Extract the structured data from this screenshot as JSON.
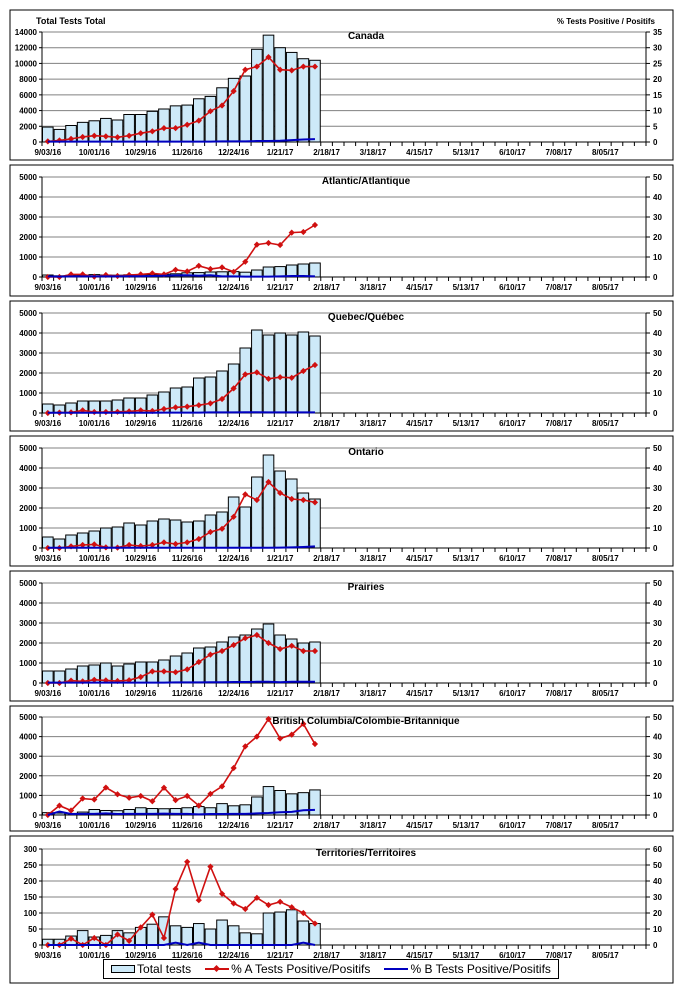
{
  "figure": {
    "left_axis_label": "Total Tests Total",
    "right_axis_label": "% Tests Positive / Positifs"
  },
  "legend": {
    "total_tests": "Total tests",
    "pct_a": "% A Tests Positive/Positifs",
    "pct_b": "% B Tests Positive/Positifs"
  },
  "colors": {
    "bar_fill": "#cde9f8",
    "bar_edge": "#000000",
    "pct_a": "#d01010",
    "pct_b": "#0000c0",
    "grid": "#808080"
  },
  "chart_data": [
    {
      "type": "bar",
      "title": "Canada",
      "xlabel": "",
      "ylabel": "Total Tests Total",
      "y2label": "% Tests Positive / Positifs",
      "x_tick_labels": [
        "9/03/16",
        "10/01/16",
        "10/29/16",
        "11/26/16",
        "12/24/16",
        "1/21/17",
        "2/18/17",
        "3/18/17",
        "4/15/17",
        "5/13/17",
        "6/10/17",
        "7/08/17",
        "8/05/17"
      ],
      "n_weeks": 52,
      "ylim": [
        0,
        14000
      ],
      "yticks": [
        0,
        2000,
        4000,
        6000,
        8000,
        10000,
        12000,
        14000
      ],
      "y2lim": [
        0,
        35
      ],
      "y2ticks": [
        0,
        5,
        10,
        15,
        20,
        25,
        30,
        35
      ],
      "grid": true,
      "series": [
        {
          "name": "Total tests",
          "axis": "left",
          "kind": "bar",
          "values": [
            1900,
            1600,
            2100,
            2500,
            2700,
            3000,
            2800,
            3500,
            3500,
            3900,
            4200,
            4600,
            4700,
            5500,
            5800,
            6900,
            8100,
            8400,
            11800,
            13600,
            12000,
            11400,
            10600,
            10400
          ]
        },
        {
          "name": "% A Tests Positive/Positifs",
          "axis": "right",
          "kind": "line",
          "values": [
            0.2,
            0.5,
            1.0,
            1.6,
            2.0,
            1.8,
            1.5,
            2.0,
            2.8,
            3.4,
            4.4,
            4.4,
            5.5,
            6.8,
            9.8,
            11.6,
            16.2,
            23.0,
            24.0,
            27.0,
            23.0,
            22.8,
            24.0,
            24.0
          ]
        },
        {
          "name": "% B Tests Positive/Positifs",
          "axis": "right",
          "kind": "line",
          "values": [
            0.1,
            0.1,
            0.1,
            0.1,
            0.1,
            0.1,
            0.1,
            0.1,
            0.1,
            0.1,
            0.1,
            0.1,
            0.1,
            0.1,
            0.1,
            0.2,
            0.2,
            0.2,
            0.3,
            0.3,
            0.4,
            0.6,
            0.8,
            0.9
          ]
        }
      ]
    },
    {
      "type": "bar",
      "title": "Atlantic/Atlantique",
      "x_tick_labels": [
        "9/03/16",
        "10/01/16",
        "10/29/16",
        "11/26/16",
        "12/24/16",
        "1/21/17",
        "2/18/17",
        "3/18/17",
        "4/15/17",
        "5/13/17",
        "6/10/17",
        "7/08/17",
        "8/05/17"
      ],
      "n_weeks": 52,
      "ylim": [
        0,
        5000
      ],
      "yticks": [
        0,
        1000,
        2000,
        3000,
        4000,
        5000
      ],
      "y2lim": [
        0,
        50
      ],
      "y2ticks": [
        0,
        10,
        20,
        30,
        40,
        50
      ],
      "grid": true,
      "series": [
        {
          "name": "Total tests",
          "axis": "left",
          "kind": "bar",
          "values": [
            100,
            60,
            80,
            90,
            120,
            100,
            90,
            110,
            110,
            120,
            140,
            160,
            210,
            220,
            250,
            260,
            270,
            240,
            350,
            500,
            520,
            600,
            650,
            700
          ]
        },
        {
          "name": "% A Tests Positive/Positifs",
          "axis": "right",
          "kind": "line",
          "values": [
            0,
            0,
            1.3,
            1.3,
            0.2,
            1.0,
            0.5,
            1.0,
            1.3,
            1.8,
            1.3,
            3.6,
            2.8,
            5.6,
            4.0,
            4.8,
            2.6,
            7.6,
            16.2,
            17.0,
            16.0,
            22.2,
            22.5,
            26.0
          ]
        },
        {
          "name": "% B Tests Positive/Positifs",
          "axis": "right",
          "kind": "line",
          "values": [
            0.3,
            0.2,
            0.3,
            0.3,
            0.3,
            0.3,
            0.3,
            0.4,
            0.4,
            0.5,
            0.6,
            0.8,
            0.9,
            0.6,
            0.9,
            0.3,
            0.3,
            0.2,
            0.2,
            0.2,
            0.3,
            0.5,
            0.5,
            0.3
          ]
        }
      ]
    },
    {
      "type": "bar",
      "title": "Quebec/Québec",
      "x_tick_labels": [
        "9/03/16",
        "10/01/16",
        "10/29/16",
        "11/26/16",
        "12/24/16",
        "1/21/17",
        "2/18/17",
        "3/18/17",
        "4/15/17",
        "5/13/17",
        "6/10/17",
        "7/08/17",
        "8/05/17"
      ],
      "n_weeks": 52,
      "ylim": [
        0,
        5000
      ],
      "yticks": [
        0,
        1000,
        2000,
        3000,
        4000,
        5000
      ],
      "y2lim": [
        0,
        50
      ],
      "y2ticks": [
        0,
        10,
        20,
        30,
        40,
        50
      ],
      "grid": true,
      "series": [
        {
          "name": "Total tests",
          "axis": "left",
          "kind": "bar",
          "values": [
            450,
            400,
            500,
            600,
            600,
            600,
            650,
            750,
            750,
            900,
            1050,
            1250,
            1300,
            1750,
            1800,
            2100,
            2450,
            3250,
            4150,
            3900,
            4000,
            3900,
            4050,
            3850
          ]
        },
        {
          "name": "% A Tests Positive/Positifs",
          "axis": "right",
          "kind": "line",
          "values": [
            0,
            0.2,
            0.3,
            1.3,
            0.5,
            0.5,
            0.6,
            0.8,
            1.3,
            1.0,
            2.0,
            2.8,
            3.2,
            3.9,
            4.8,
            7.0,
            12.3,
            19.3,
            20.3,
            17.1,
            17.9,
            17.6,
            21.0,
            24.0
          ]
        },
        {
          "name": "% B Tests Positive/Positifs",
          "axis": "right",
          "kind": "line",
          "values": [
            0.1,
            0.1,
            0.1,
            0.1,
            0.1,
            0.1,
            0.1,
            0.1,
            0.1,
            0.1,
            0.2,
            0.2,
            0.2,
            0.2,
            0.3,
            0.3,
            0.3,
            0.4,
            0.4,
            0.3,
            0.3,
            0.3,
            0.3,
            0.3
          ]
        }
      ]
    },
    {
      "type": "bar",
      "title": "Ontario",
      "x_tick_labels": [
        "9/03/16",
        "10/01/16",
        "10/29/16",
        "11/26/16",
        "12/24/16",
        "1/21/17",
        "2/18/17",
        "3/18/17",
        "4/15/17",
        "5/13/17",
        "6/10/17",
        "7/08/17",
        "8/05/17"
      ],
      "n_weeks": 52,
      "ylim": [
        0,
        5000
      ],
      "yticks": [
        0,
        1000,
        2000,
        3000,
        4000,
        5000
      ],
      "y2lim": [
        0,
        50
      ],
      "y2ticks": [
        0,
        10,
        20,
        30,
        40,
        50
      ],
      "grid": true,
      "series": [
        {
          "name": "Total tests",
          "axis": "left",
          "kind": "bar",
          "values": [
            550,
            450,
            650,
            750,
            850,
            1000,
            1050,
            1250,
            1150,
            1350,
            1450,
            1400,
            1300,
            1350,
            1650,
            1800,
            2550,
            2050,
            3550,
            4650,
            3850,
            3450,
            2750,
            2450
          ]
        },
        {
          "name": "% A Tests Positive/Positifs",
          "axis": "right",
          "kind": "line",
          "values": [
            0,
            0,
            0.8,
            1.5,
            1.8,
            0.3,
            0.2,
            1.5,
            1.0,
            1.5,
            2.8,
            2.0,
            2.8,
            4.5,
            8.0,
            9.6,
            15.6,
            26.8,
            24.0,
            33.0,
            27.5,
            24.5,
            24.0,
            22.8
          ]
        },
        {
          "name": "% B Tests Positive/Positifs",
          "axis": "right",
          "kind": "line",
          "values": [
            0.1,
            0.1,
            0.1,
            0.1,
            0.1,
            0.1,
            0.1,
            0.1,
            0.1,
            0.1,
            0.1,
            0.1,
            0.1,
            0.1,
            0.1,
            0.1,
            0.1,
            0.1,
            0.1,
            0.1,
            0.2,
            0.3,
            0.5,
            0.8
          ]
        }
      ]
    },
    {
      "type": "bar",
      "title": "Prairies",
      "x_tick_labels": [
        "9/03/16",
        "10/01/16",
        "10/29/16",
        "11/26/16",
        "12/24/16",
        "1/21/17",
        "2/18/17",
        "3/18/17",
        "4/15/17",
        "5/13/17",
        "6/10/17",
        "7/08/17",
        "8/05/17"
      ],
      "n_weeks": 52,
      "ylim": [
        0,
        5000
      ],
      "yticks": [
        0,
        1000,
        2000,
        3000,
        4000,
        5000
      ],
      "y2lim": [
        0,
        50
      ],
      "y2ticks": [
        0,
        10,
        20,
        30,
        40,
        50
      ],
      "grid": true,
      "series": [
        {
          "name": "Total tests",
          "axis": "left",
          "kind": "bar",
          "values": [
            600,
            600,
            700,
            850,
            900,
            1000,
            850,
            950,
            1050,
            1050,
            1150,
            1350,
            1500,
            1750,
            1800,
            2050,
            2300,
            2400,
            2700,
            2950,
            2400,
            2200,
            2000,
            2050
          ]
        },
        {
          "name": "% A Tests Positive/Positifs",
          "axis": "right",
          "kind": "line",
          "values": [
            0,
            0,
            1.2,
            0.8,
            1.6,
            1.3,
            1.0,
            1.4,
            3.0,
            5.8,
            5.8,
            5.4,
            6.8,
            10.5,
            14.2,
            16.0,
            19.0,
            22.4,
            24.0,
            20.0,
            17.0,
            18.6,
            16.0,
            16.0
          ]
        },
        {
          "name": "% B Tests Positive/Positifs",
          "axis": "right",
          "kind": "line",
          "values": [
            0.2,
            0.2,
            0.2,
            0.2,
            0.2,
            0.2,
            0.2,
            0.2,
            0.2,
            0.2,
            0.2,
            0.3,
            0.3,
            0.3,
            0.4,
            0.4,
            0.5,
            0.5,
            0.6,
            0.6,
            0.4,
            0.6,
            0.6,
            0.6
          ]
        }
      ]
    },
    {
      "type": "bar",
      "title": "British Columbia/Colombie-Britannique",
      "x_tick_labels": [
        "9/03/16",
        "10/01/16",
        "10/29/16",
        "11/26/16",
        "12/24/16",
        "1/21/17",
        "2/18/17",
        "3/18/17",
        "4/15/17",
        "5/13/17",
        "6/10/17",
        "7/08/17",
        "8/05/17"
      ],
      "n_weeks": 52,
      "ylim": [
        0,
        5000
      ],
      "yticks": [
        0,
        1000,
        2000,
        3000,
        4000,
        5000
      ],
      "y2lim": [
        0,
        50
      ],
      "y2ticks": [
        0,
        10,
        20,
        30,
        40,
        50
      ],
      "grid": true,
      "series": [
        {
          "name": "Total tests",
          "axis": "left",
          "kind": "bar",
          "values": [
            120,
            100,
            80,
            150,
            280,
            230,
            220,
            280,
            370,
            330,
            320,
            330,
            370,
            430,
            370,
            580,
            470,
            520,
            920,
            1450,
            1250,
            1080,
            1140,
            1280
          ]
        },
        {
          "name": "% A Tests Positive/Positifs",
          "axis": "right",
          "kind": "line",
          "values": [
            0,
            4.8,
            2.3,
            8.4,
            7.9,
            14.0,
            10.6,
            8.8,
            9.7,
            7.0,
            13.9,
            7.6,
            9.7,
            4.8,
            10.8,
            14.6,
            24.0,
            35.0,
            40.0,
            49.0,
            39.0,
            41.0,
            46.5,
            36.2
          ]
        },
        {
          "name": "% B Tests Positive/Positifs",
          "axis": "right",
          "kind": "line",
          "values": [
            0,
            1.8,
            0.5,
            0.6,
            0.6,
            0.8,
            0.5,
            0.6,
            0.6,
            0.6,
            0.7,
            0.6,
            0.6,
            0.3,
            0.5,
            0.5,
            0.6,
            0.6,
            0.8,
            1.0,
            1.4,
            1.6,
            2.4,
            2.6
          ]
        }
      ]
    },
    {
      "type": "bar",
      "title": "Territories/Territoires",
      "x_tick_labels": [
        "9/03/16",
        "10/01/16",
        "10/29/16",
        "11/26/16",
        "12/24/16",
        "1/21/17",
        "2/18/17",
        "3/18/17",
        "4/15/17",
        "5/13/17",
        "6/10/17",
        "7/08/17",
        "8/05/17"
      ],
      "n_weeks": 52,
      "ylim": [
        0,
        300
      ],
      "yticks": [
        0,
        50,
        100,
        150,
        200,
        250,
        300
      ],
      "y2lim": [
        0,
        60
      ],
      "y2ticks": [
        0,
        10,
        20,
        30,
        40,
        50,
        60
      ],
      "grid": true,
      "series": [
        {
          "name": "Total tests",
          "axis": "left",
          "kind": "bar",
          "values": [
            18,
            18,
            28,
            45,
            25,
            30,
            45,
            38,
            55,
            65,
            88,
            60,
            55,
            67,
            50,
            78,
            60,
            38,
            35,
            100,
            103,
            110,
            75,
            67
          ]
        },
        {
          "name": "% A Tests Positive/Positifs",
          "axis": "right",
          "kind": "line",
          "values": [
            0,
            0,
            4.0,
            0,
            4.4,
            0,
            6.6,
            2.6,
            11.0,
            19.0,
            4.4,
            35.0,
            52.0,
            28.0,
            49.0,
            32.0,
            26.0,
            22.5,
            29.5,
            25.0,
            27.0,
            23.6,
            20.0,
            13.4
          ]
        },
        {
          "name": "% B Tests Positive/Positifs",
          "axis": "right",
          "kind": "line",
          "values": [
            0,
            0,
            0,
            0,
            0,
            0,
            0,
            0,
            0,
            0,
            0,
            1.5,
            0,
            1.5,
            0,
            0,
            0,
            0,
            0,
            0,
            0,
            0,
            1.5,
            0
          ]
        }
      ]
    }
  ]
}
